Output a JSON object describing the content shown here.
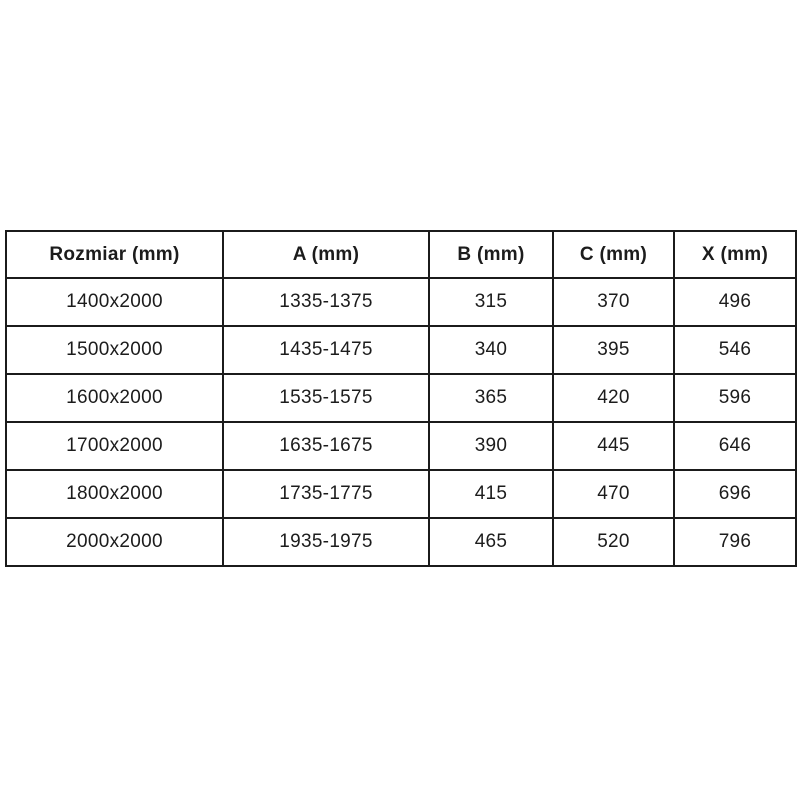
{
  "table": {
    "name": "dimension-table",
    "columns": [
      "Rozmiar (mm)",
      "A (mm)",
      "B (mm)",
      "C (mm)",
      "X (mm)"
    ],
    "rows": [
      [
        "1400x2000",
        "1335-1375",
        "315",
        "370",
        "496"
      ],
      [
        "1500x2000",
        "1435-1475",
        "340",
        "395",
        "546"
      ],
      [
        "1600x2000",
        "1535-1575",
        "365",
        "420",
        "596"
      ],
      [
        "1700x2000",
        "1635-1675",
        "390",
        "445",
        "646"
      ],
      [
        "1800x2000",
        "1735-1775",
        "415",
        "470",
        "696"
      ],
      [
        "2000x2000",
        "1935-1975",
        "465",
        "520",
        "796"
      ]
    ]
  },
  "colors": {
    "border": "#1b1b1b",
    "text": "#1c1c1c",
    "background": "#ffffff"
  }
}
